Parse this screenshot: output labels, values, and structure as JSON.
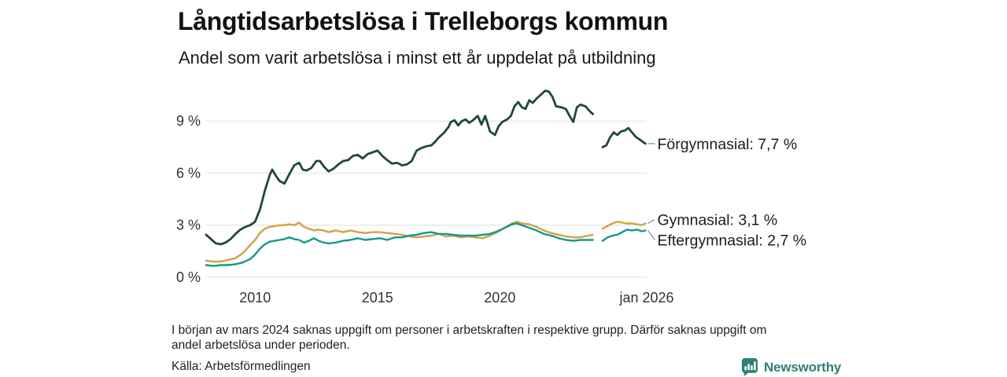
{
  "header": {
    "title": "Långtidsarbetslösa i Trelleborgs kommun",
    "subtitle": "Andel som varit arbetslösa i minst ett år uppdelat på utbildning"
  },
  "chart_data": {
    "type": "line",
    "title": "Långtidsarbetslösa i Trelleborgs kommun",
    "subtitle": "Andel som varit arbetslösa i minst ett år uppdelat på utbildning",
    "xlabel": "",
    "ylabel": "",
    "grid": true,
    "grid_color": "#e2e2e2",
    "legend_position": "right-end-labels",
    "xlim": [
      2008,
      2026
    ],
    "ylim": [
      0,
      11
    ],
    "y_ticks": [
      {
        "label": "0 %",
        "value": 0
      },
      {
        "label": "3 %",
        "value": 3
      },
      {
        "label": "6 %",
        "value": 6
      },
      {
        "label": "9 %",
        "value": 9
      }
    ],
    "x_ticks": [
      {
        "label": "2010",
        "year": 2010
      },
      {
        "label": "2015",
        "year": 2015
      },
      {
        "label": "2020",
        "year": 2020
      },
      {
        "label": "jan 2026",
        "year": 2026
      }
    ],
    "data_gap": "mars 2024",
    "series": [
      {
        "name": "Förgymnasial",
        "label": "Förgymnasial: 7,7 %",
        "end_value_label": "7,7 %",
        "color": "#1f473c",
        "line_width": 2.8,
        "label_dy": 0,
        "points": [
          [
            2008.0,
            2.45
          ],
          [
            2008.2,
            2.2
          ],
          [
            2008.4,
            1.95
          ],
          [
            2008.6,
            1.9
          ],
          [
            2008.8,
            2.0
          ],
          [
            2009.0,
            2.2
          ],
          [
            2009.2,
            2.5
          ],
          [
            2009.4,
            2.75
          ],
          [
            2009.6,
            2.9
          ],
          [
            2009.8,
            3.0
          ],
          [
            2010.0,
            3.2
          ],
          [
            2010.2,
            3.9
          ],
          [
            2010.4,
            5.0
          ],
          [
            2010.6,
            5.9
          ],
          [
            2010.7,
            6.2
          ],
          [
            2010.85,
            5.85
          ],
          [
            2011.0,
            5.55
          ],
          [
            2011.2,
            5.4
          ],
          [
            2011.4,
            5.95
          ],
          [
            2011.6,
            6.45
          ],
          [
            2011.8,
            6.6
          ],
          [
            2011.95,
            6.2
          ],
          [
            2012.1,
            6.15
          ],
          [
            2012.3,
            6.3
          ],
          [
            2012.5,
            6.7
          ],
          [
            2012.65,
            6.7
          ],
          [
            2012.8,
            6.4
          ],
          [
            2013.0,
            6.1
          ],
          [
            2013.2,
            6.25
          ],
          [
            2013.4,
            6.5
          ],
          [
            2013.6,
            6.7
          ],
          [
            2013.8,
            6.75
          ],
          [
            2014.0,
            7.0
          ],
          [
            2014.2,
            7.05
          ],
          [
            2014.4,
            6.85
          ],
          [
            2014.6,
            7.1
          ],
          [
            2014.8,
            7.2
          ],
          [
            2015.0,
            7.3
          ],
          [
            2015.2,
            7.0
          ],
          [
            2015.4,
            6.75
          ],
          [
            2015.6,
            6.55
          ],
          [
            2015.8,
            6.6
          ],
          [
            2016.0,
            6.45
          ],
          [
            2016.2,
            6.5
          ],
          [
            2016.4,
            6.7
          ],
          [
            2016.6,
            7.3
          ],
          [
            2016.8,
            7.45
          ],
          [
            2017.0,
            7.55
          ],
          [
            2017.2,
            7.6
          ],
          [
            2017.35,
            7.8
          ],
          [
            2017.5,
            8.05
          ],
          [
            2017.7,
            8.3
          ],
          [
            2017.9,
            8.65
          ],
          [
            2018.0,
            8.95
          ],
          [
            2018.15,
            9.05
          ],
          [
            2018.3,
            8.75
          ],
          [
            2018.45,
            9.0
          ],
          [
            2018.6,
            9.1
          ],
          [
            2018.75,
            8.9
          ],
          [
            2018.9,
            9.05
          ],
          [
            2019.1,
            9.3
          ],
          [
            2019.25,
            8.8
          ],
          [
            2019.4,
            9.3
          ],
          [
            2019.6,
            8.4
          ],
          [
            2019.8,
            8.2
          ],
          [
            2019.95,
            8.7
          ],
          [
            2020.1,
            8.95
          ],
          [
            2020.3,
            9.1
          ],
          [
            2020.45,
            9.3
          ],
          [
            2020.6,
            9.85
          ],
          [
            2020.75,
            10.1
          ],
          [
            2020.9,
            9.8
          ],
          [
            2021.05,
            9.7
          ],
          [
            2021.2,
            10.2
          ],
          [
            2021.35,
            10.05
          ],
          [
            2021.5,
            10.3
          ],
          [
            2021.7,
            10.55
          ],
          [
            2021.85,
            10.75
          ],
          [
            2022.0,
            10.7
          ],
          [
            2022.15,
            10.4
          ],
          [
            2022.3,
            9.85
          ],
          [
            2022.5,
            9.8
          ],
          [
            2022.7,
            9.7
          ],
          [
            2022.85,
            9.3
          ],
          [
            2023.0,
            8.95
          ],
          [
            2023.15,
            9.8
          ],
          [
            2023.3,
            9.95
          ],
          [
            2023.5,
            9.85
          ],
          [
            2023.65,
            9.6
          ],
          [
            2023.8,
            9.4
          ],
          null,
          [
            2024.2,
            7.5
          ],
          [
            2024.35,
            7.6
          ],
          [
            2024.5,
            8.05
          ],
          [
            2024.65,
            8.35
          ],
          [
            2024.8,
            8.2
          ],
          [
            2024.95,
            8.4
          ],
          [
            2025.1,
            8.45
          ],
          [
            2025.25,
            8.6
          ],
          [
            2025.4,
            8.35
          ],
          [
            2025.55,
            8.1
          ],
          [
            2025.7,
            7.95
          ],
          [
            2025.85,
            7.8
          ],
          [
            2025.95,
            7.7
          ]
        ]
      },
      {
        "name": "Gymnasial",
        "label": "Gymnasial: 3,1 %",
        "end_value_label": "3,1 %",
        "color": "#d4a142",
        "line_width": 2.4,
        "label_dy": -5,
        "points": [
          [
            2008.0,
            0.95
          ],
          [
            2008.3,
            0.9
          ],
          [
            2008.6,
            0.9
          ],
          [
            2008.9,
            1.0
          ],
          [
            2009.2,
            1.1
          ],
          [
            2009.5,
            1.4
          ],
          [
            2009.8,
            1.85
          ],
          [
            2010.0,
            2.15
          ],
          [
            2010.2,
            2.55
          ],
          [
            2010.4,
            2.8
          ],
          [
            2010.6,
            2.9
          ],
          [
            2010.8,
            2.95
          ],
          [
            2011.0,
            3.0
          ],
          [
            2011.2,
            3.0
          ],
          [
            2011.4,
            3.05
          ],
          [
            2011.6,
            3.0
          ],
          [
            2011.8,
            3.15
          ],
          [
            2012.0,
            2.9
          ],
          [
            2012.2,
            2.8
          ],
          [
            2012.4,
            2.7
          ],
          [
            2012.6,
            2.75
          ],
          [
            2012.8,
            2.7
          ],
          [
            2013.0,
            2.6
          ],
          [
            2013.3,
            2.7
          ],
          [
            2013.6,
            2.6
          ],
          [
            2013.9,
            2.7
          ],
          [
            2014.2,
            2.6
          ],
          [
            2014.5,
            2.55
          ],
          [
            2014.8,
            2.6
          ],
          [
            2015.1,
            2.6
          ],
          [
            2015.4,
            2.55
          ],
          [
            2015.7,
            2.5
          ],
          [
            2016.0,
            2.45
          ],
          [
            2016.3,
            2.35
          ],
          [
            2016.6,
            2.3
          ],
          [
            2016.9,
            2.35
          ],
          [
            2017.2,
            2.4
          ],
          [
            2017.5,
            2.5
          ],
          [
            2017.8,
            2.35
          ],
          [
            2018.1,
            2.4
          ],
          [
            2018.4,
            2.3
          ],
          [
            2018.7,
            2.35
          ],
          [
            2019.0,
            2.3
          ],
          [
            2019.3,
            2.25
          ],
          [
            2019.6,
            2.4
          ],
          [
            2019.9,
            2.6
          ],
          [
            2020.2,
            2.85
          ],
          [
            2020.5,
            3.1
          ],
          [
            2020.7,
            3.2
          ],
          [
            2020.9,
            3.1
          ],
          [
            2021.2,
            3.05
          ],
          [
            2021.5,
            2.9
          ],
          [
            2021.8,
            2.7
          ],
          [
            2022.1,
            2.55
          ],
          [
            2022.4,
            2.45
          ],
          [
            2022.7,
            2.35
          ],
          [
            2023.0,
            2.3
          ],
          [
            2023.3,
            2.3
          ],
          [
            2023.6,
            2.4
          ],
          [
            2023.8,
            2.45
          ],
          null,
          [
            2024.2,
            2.8
          ],
          [
            2024.4,
            2.95
          ],
          [
            2024.6,
            3.1
          ],
          [
            2024.8,
            3.2
          ],
          [
            2025.0,
            3.15
          ],
          [
            2025.2,
            3.1
          ],
          [
            2025.4,
            3.1
          ],
          [
            2025.6,
            3.05
          ],
          [
            2025.8,
            3.0
          ],
          [
            2025.95,
            3.1
          ]
        ]
      },
      {
        "name": "Eftergymnasial",
        "label": "Eftergymnasial: 2,7 %",
        "end_value_label": "2,7 %",
        "color": "#14998a",
        "line_width": 2.4,
        "label_dy": 12,
        "points": [
          [
            2008.0,
            0.7
          ],
          [
            2008.3,
            0.65
          ],
          [
            2008.6,
            0.7
          ],
          [
            2008.9,
            0.7
          ],
          [
            2009.2,
            0.75
          ],
          [
            2009.5,
            0.85
          ],
          [
            2009.8,
            1.05
          ],
          [
            2010.0,
            1.3
          ],
          [
            2010.2,
            1.65
          ],
          [
            2010.4,
            1.9
          ],
          [
            2010.6,
            2.05
          ],
          [
            2010.8,
            2.1
          ],
          [
            2011.0,
            2.15
          ],
          [
            2011.2,
            2.2
          ],
          [
            2011.4,
            2.3
          ],
          [
            2011.6,
            2.2
          ],
          [
            2011.8,
            2.15
          ],
          [
            2012.0,
            2.0
          ],
          [
            2012.2,
            2.1
          ],
          [
            2012.4,
            2.25
          ],
          [
            2012.6,
            2.1
          ],
          [
            2012.8,
            2.0
          ],
          [
            2013.0,
            1.95
          ],
          [
            2013.3,
            2.0
          ],
          [
            2013.6,
            2.1
          ],
          [
            2013.9,
            2.15
          ],
          [
            2014.2,
            2.25
          ],
          [
            2014.5,
            2.15
          ],
          [
            2014.8,
            2.2
          ],
          [
            2015.1,
            2.25
          ],
          [
            2015.4,
            2.15
          ],
          [
            2015.7,
            2.3
          ],
          [
            2016.0,
            2.3
          ],
          [
            2016.3,
            2.4
          ],
          [
            2016.6,
            2.45
          ],
          [
            2016.9,
            2.55
          ],
          [
            2017.2,
            2.6
          ],
          [
            2017.5,
            2.5
          ],
          [
            2017.8,
            2.5
          ],
          [
            2018.1,
            2.45
          ],
          [
            2018.4,
            2.4
          ],
          [
            2018.7,
            2.4
          ],
          [
            2019.0,
            2.4
          ],
          [
            2019.3,
            2.45
          ],
          [
            2019.6,
            2.5
          ],
          [
            2019.9,
            2.65
          ],
          [
            2020.2,
            2.85
          ],
          [
            2020.5,
            3.05
          ],
          [
            2020.7,
            3.1
          ],
          [
            2020.9,
            3.0
          ],
          [
            2021.2,
            2.85
          ],
          [
            2021.5,
            2.7
          ],
          [
            2021.8,
            2.5
          ],
          [
            2022.1,
            2.4
          ],
          [
            2022.4,
            2.25
          ],
          [
            2022.7,
            2.15
          ],
          [
            2023.0,
            2.1
          ],
          [
            2023.3,
            2.15
          ],
          [
            2023.6,
            2.15
          ],
          [
            2023.8,
            2.15
          ],
          null,
          [
            2024.2,
            2.1
          ],
          [
            2024.4,
            2.3
          ],
          [
            2024.6,
            2.4
          ],
          [
            2024.8,
            2.45
          ],
          [
            2025.0,
            2.6
          ],
          [
            2025.2,
            2.75
          ],
          [
            2025.4,
            2.7
          ],
          [
            2025.6,
            2.75
          ],
          [
            2025.8,
            2.65
          ],
          [
            2025.95,
            2.7
          ]
        ]
      }
    ]
  },
  "footnote": {
    "line1": "I början av mars 2024 saknas uppgift om personer i arbetskraften i respektive grupp. Därför saknas uppgift om",
    "line2": "andel arbetslösa under perioden."
  },
  "source": "Källa: Arbetsförmedlingen",
  "branding": {
    "name": "Newsworthy",
    "color": "#2c8077",
    "icon": "newsworthy-chart-bubble-icon"
  }
}
